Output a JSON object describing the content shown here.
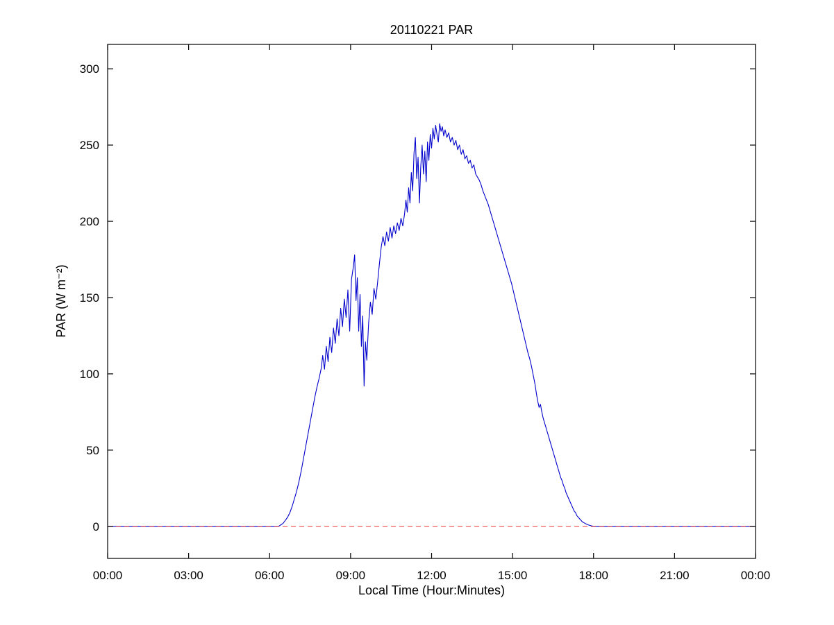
{
  "chart_data": {
    "type": "line",
    "title": "20110221 PAR",
    "xlabel": "Local Time (Hour:Minutes)",
    "ylabel": "PAR (W m⁻²)",
    "grid": false,
    "legend": null,
    "xlim_minutes": [
      0,
      1440
    ],
    "ylim": [
      -21,
      316
    ],
    "x_ticks_minutes": [
      0,
      180,
      360,
      540,
      720,
      900,
      1080,
      1260,
      1440
    ],
    "x_tick_labels": [
      "00:00",
      "03:00",
      "06:00",
      "09:00",
      "12:00",
      "15:00",
      "18:00",
      "21:00",
      "00:00"
    ],
    "y_ticks": [
      0,
      50,
      100,
      150,
      200,
      250,
      300
    ],
    "y_tick_labels": [
      "0",
      "50",
      "100",
      "150",
      "200",
      "250",
      "300"
    ],
    "reference_line": {
      "y": 0,
      "color": "#ee3333",
      "style": "dashed"
    },
    "series": [
      {
        "name": "PAR",
        "color": "#0000cc",
        "style": "solid",
        "points_minutes_value": [
          [
            0,
            0
          ],
          [
            60,
            0
          ],
          [
            120,
            0
          ],
          [
            180,
            0
          ],
          [
            240,
            0
          ],
          [
            300,
            0
          ],
          [
            360,
            0
          ],
          [
            380,
            0
          ],
          [
            385,
            1
          ],
          [
            390,
            2
          ],
          [
            395,
            4
          ],
          [
            400,
            6
          ],
          [
            405,
            9
          ],
          [
            410,
            13
          ],
          [
            415,
            18
          ],
          [
            420,
            23
          ],
          [
            425,
            29
          ],
          [
            430,
            36
          ],
          [
            435,
            44
          ],
          [
            440,
            52
          ],
          [
            445,
            60
          ],
          [
            450,
            68
          ],
          [
            455,
            76
          ],
          [
            460,
            84
          ],
          [
            465,
            91
          ],
          [
            470,
            97
          ],
          [
            475,
            104
          ],
          [
            478,
            112
          ],
          [
            482,
            103
          ],
          [
            486,
            118
          ],
          [
            490,
            108
          ],
          [
            494,
            124
          ],
          [
            498,
            114
          ],
          [
            502,
            130
          ],
          [
            506,
            120
          ],
          [
            510,
            136
          ],
          [
            514,
            125
          ],
          [
            518,
            143
          ],
          [
            522,
            131
          ],
          [
            526,
            149
          ],
          [
            530,
            137
          ],
          [
            534,
            155
          ],
          [
            538,
            128
          ],
          [
            542,
            162
          ],
          [
            546,
            170
          ],
          [
            549,
            178
          ],
          [
            552,
            148
          ],
          [
            555,
            163
          ],
          [
            558,
            128
          ],
          [
            561,
            152
          ],
          [
            564,
            118
          ],
          [
            567,
            138
          ],
          [
            570,
            92
          ],
          [
            573,
            121
          ],
          [
            576,
            109
          ],
          [
            580,
            133
          ],
          [
            584,
            147
          ],
          [
            588,
            139
          ],
          [
            592,
            156
          ],
          [
            596,
            149
          ],
          [
            600,
            160
          ],
          [
            604,
            172
          ],
          [
            608,
            183
          ],
          [
            612,
            190
          ],
          [
            616,
            184
          ],
          [
            620,
            193
          ],
          [
            624,
            187
          ],
          [
            628,
            196
          ],
          [
            632,
            189
          ],
          [
            636,
            197
          ],
          [
            640,
            192
          ],
          [
            644,
            199
          ],
          [
            648,
            194
          ],
          [
            652,
            202
          ],
          [
            656,
            197
          ],
          [
            660,
            205
          ],
          [
            663,
            214
          ],
          [
            666,
            206
          ],
          [
            669,
            222
          ],
          [
            672,
            212
          ],
          [
            675,
            232
          ],
          [
            678,
            220
          ],
          [
            681,
            245
          ],
          [
            684,
            255
          ],
          [
            687,
            228
          ],
          [
            690,
            242
          ],
          [
            693,
            212
          ],
          [
            696,
            236
          ],
          [
            699,
            250
          ],
          [
            702,
            231
          ],
          [
            705,
            246
          ],
          [
            708,
            226
          ],
          [
            711,
            252
          ],
          [
            714,
            240
          ],
          [
            717,
            257
          ],
          [
            720,
            248
          ],
          [
            723,
            261
          ],
          [
            726,
            254
          ],
          [
            729,
            263
          ],
          [
            732,
            257
          ],
          [
            735,
            252
          ],
          [
            738,
            264
          ],
          [
            741,
            259
          ],
          [
            744,
            262
          ],
          [
            747,
            256
          ],
          [
            750,
            260
          ],
          [
            754,
            255
          ],
          [
            758,
            258
          ],
          [
            762,
            252
          ],
          [
            766,
            255
          ],
          [
            770,
            250
          ],
          [
            774,
            253
          ],
          [
            778,
            247
          ],
          [
            782,
            250
          ],
          [
            786,
            244
          ],
          [
            790,
            247
          ],
          [
            794,
            241
          ],
          [
            798,
            243
          ],
          [
            802,
            238
          ],
          [
            806,
            240
          ],
          [
            810,
            235
          ],
          [
            814,
            237
          ],
          [
            818,
            231
          ],
          [
            822,
            229
          ],
          [
            826,
            227
          ],
          [
            830,
            224
          ],
          [
            834,
            220
          ],
          [
            838,
            217
          ],
          [
            842,
            214
          ],
          [
            846,
            211
          ],
          [
            850,
            207
          ],
          [
            854,
            203
          ],
          [
            858,
            199
          ],
          [
            862,
            195
          ],
          [
            866,
            191
          ],
          [
            870,
            187
          ],
          [
            874,
            183
          ],
          [
            878,
            179
          ],
          [
            882,
            175
          ],
          [
            886,
            171
          ],
          [
            890,
            167
          ],
          [
            894,
            163
          ],
          [
            898,
            159
          ],
          [
            902,
            154
          ],
          [
            906,
            149
          ],
          [
            910,
            144
          ],
          [
            914,
            139
          ],
          [
            918,
            134
          ],
          [
            922,
            129
          ],
          [
            926,
            124
          ],
          [
            930,
            119
          ],
          [
            934,
            114
          ],
          [
            938,
            110
          ],
          [
            942,
            105
          ],
          [
            946,
            99
          ],
          [
            950,
            93
          ],
          [
            953,
            87
          ],
          [
            956,
            82
          ],
          [
            959,
            78
          ],
          [
            962,
            80
          ],
          [
            965,
            75
          ],
          [
            968,
            71
          ],
          [
            971,
            68
          ],
          [
            974,
            65
          ],
          [
            977,
            62
          ],
          [
            980,
            59
          ],
          [
            983,
            56
          ],
          [
            986,
            53
          ],
          [
            989,
            50
          ],
          [
            992,
            47
          ],
          [
            995,
            44
          ],
          [
            998,
            41
          ],
          [
            1001,
            38
          ],
          [
            1004,
            35
          ],
          [
            1007,
            32
          ],
          [
            1010,
            30
          ],
          [
            1013,
            27
          ],
          [
            1016,
            25
          ],
          [
            1019,
            22
          ],
          [
            1022,
            20
          ],
          [
            1025,
            18
          ],
          [
            1028,
            16
          ],
          [
            1031,
            14
          ],
          [
            1034,
            12
          ],
          [
            1037,
            10
          ],
          [
            1040,
            9
          ],
          [
            1043,
            7
          ],
          [
            1046,
            6
          ],
          [
            1049,
            5
          ],
          [
            1052,
            4
          ],
          [
            1055,
            3
          ],
          [
            1058,
            2.5
          ],
          [
            1061,
            2
          ],
          [
            1064,
            1.5
          ],
          [
            1068,
            1
          ],
          [
            1072,
            0.6
          ],
          [
            1076,
            0.3
          ],
          [
            1080,
            0.1
          ],
          [
            1085,
            0
          ],
          [
            1140,
            0
          ],
          [
            1200,
            0
          ],
          [
            1260,
            0
          ],
          [
            1320,
            0
          ],
          [
            1380,
            0
          ],
          [
            1440,
            0
          ]
        ]
      }
    ],
    "axis_color": "#000000",
    "plot_background": "#ffffff"
  }
}
